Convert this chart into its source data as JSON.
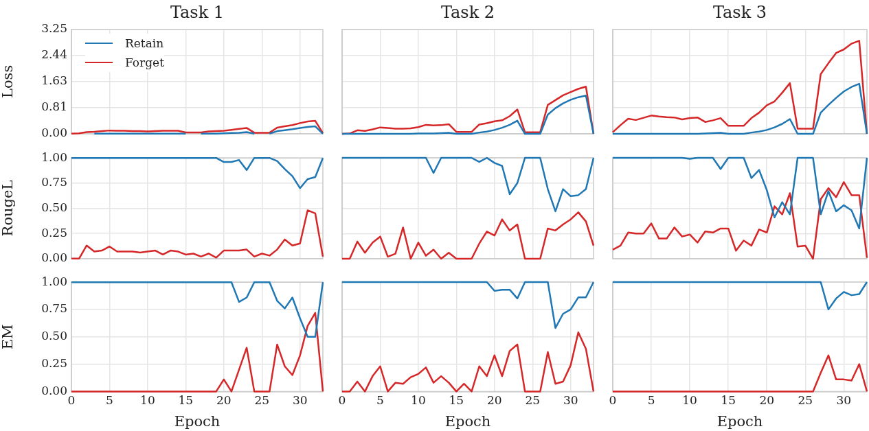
{
  "chart_data": [
    {
      "type": "line",
      "title": "Task 1",
      "ylabel": "Loss",
      "x": [
        0,
        1,
        2,
        3,
        4,
        5,
        6,
        7,
        8,
        9,
        10,
        11,
        12,
        13,
        14,
        15,
        16,
        17,
        18,
        19,
        20,
        21,
        22,
        23,
        24,
        25,
        26,
        27,
        28,
        29,
        30,
        31,
        32,
        33
      ],
      "xlim": [
        0,
        33
      ],
      "xticks": [
        0,
        5,
        10,
        15,
        20,
        25,
        30
      ],
      "ylim": [
        0,
        3.25
      ],
      "yticks": [
        {
          "value": 0,
          "label": "0.00"
        },
        {
          "value": 0.81,
          "label": "0.81"
        },
        {
          "value": 1.63,
          "label": "1.63"
        },
        {
          "value": 2.44,
          "label": "2.44"
        },
        {
          "value": 3.25,
          "label": "3.25"
        }
      ],
      "grid": true,
      "legend": "top left",
      "tick_labels": "y",
      "series": [
        {
          "name": "Retain",
          "color": "#1f77b4",
          "values": [
            null,
            null,
            null,
            0,
            0,
            0,
            0,
            0,
            0,
            0,
            0,
            0,
            0,
            0,
            0,
            0,
            null,
            0,
            0,
            0,
            0.01,
            0.02,
            0.03,
            0.05,
            0,
            null,
            0,
            0.08,
            0.11,
            0.14,
            0.18,
            0.21,
            0.23,
            0
          ]
        },
        {
          "name": "Forget",
          "color": "#d62728",
          "values": [
            0,
            0.01,
            0.05,
            0.06,
            0.08,
            0.1,
            0.09,
            0.09,
            0.08,
            0.08,
            0.07,
            0.08,
            0.09,
            0.09,
            0.09,
            0.04,
            0.04,
            0.04,
            0.07,
            0.08,
            0.09,
            0.12,
            0.15,
            0.18,
            0.03,
            0.03,
            0.03,
            0.19,
            0.23,
            0.27,
            0.33,
            0.38,
            0.4,
            0.02
          ]
        }
      ]
    },
    {
      "type": "line",
      "title": "Task 2",
      "x": [
        0,
        1,
        2,
        3,
        4,
        5,
        6,
        7,
        8,
        9,
        10,
        11,
        12,
        13,
        14,
        15,
        16,
        17,
        18,
        19,
        20,
        21,
        22,
        23,
        24,
        25,
        26,
        27,
        28,
        29,
        30,
        31,
        32,
        33
      ],
      "xlim": [
        0,
        33
      ],
      "xticks": [
        0,
        5,
        10,
        15,
        20,
        25,
        30
      ],
      "ylim": [
        0,
        3.25
      ],
      "yticks": [
        0,
        0.81,
        1.63,
        2.44,
        3.25
      ],
      "grid": true,
      "tick_labels": false,
      "series": [
        {
          "color": "#1f77b4",
          "values": [
            0,
            0,
            0,
            0,
            0,
            0,
            0,
            0,
            0,
            0,
            0.01,
            0.01,
            0.01,
            0.02,
            0.03,
            0,
            0,
            0,
            0.04,
            0.07,
            0.12,
            0.19,
            0.28,
            0.41,
            0,
            0,
            0,
            0.6,
            0.8,
            0.95,
            1.06,
            1.14,
            1.19,
            0
          ]
        },
        {
          "color": "#d62728",
          "values": [
            0,
            0.01,
            0.11,
            0.09,
            0.14,
            0.2,
            0.18,
            0.16,
            0.16,
            0.17,
            0.21,
            0.28,
            0.26,
            0.27,
            0.3,
            0.06,
            0.06,
            0.06,
            0.29,
            0.33,
            0.39,
            0.42,
            0.55,
            0.76,
            0.05,
            0.05,
            0.05,
            0.9,
            1.05,
            1.2,
            1.3,
            1.4,
            1.47,
            0
          ]
        }
      ]
    },
    {
      "type": "line",
      "title": "Task 3",
      "x": [
        0,
        1,
        2,
        3,
        4,
        5,
        6,
        7,
        8,
        9,
        10,
        11,
        12,
        13,
        14,
        15,
        16,
        17,
        18,
        19,
        20,
        21,
        22,
        23,
        24,
        25,
        26,
        27,
        28,
        29,
        30,
        31,
        32,
        33
      ],
      "xlim": [
        0,
        33
      ],
      "xticks": [
        0,
        5,
        10,
        15,
        20,
        25,
        30
      ],
      "ylim": [
        0,
        3.25
      ],
      "yticks": [
        0,
        0.81,
        1.63,
        2.44,
        3.25
      ],
      "grid": true,
      "tick_labels": false,
      "series": [
        {
          "color": "#1f77b4",
          "values": [
            0,
            0,
            0,
            0,
            0,
            0,
            0,
            0,
            0,
            0,
            0,
            0,
            0.01,
            0.02,
            0.03,
            0,
            0,
            0,
            0.04,
            0.07,
            0.12,
            0.2,
            0.31,
            0.46,
            0,
            0,
            0,
            0.66,
            0.9,
            1.12,
            1.32,
            1.46,
            1.56,
            0
          ]
        },
        {
          "color": "#d62728",
          "values": [
            0.05,
            0.27,
            0.47,
            0.43,
            0.5,
            0.57,
            0.54,
            0.52,
            0.51,
            0.45,
            0.49,
            0.51,
            0.37,
            0.42,
            0.49,
            0.25,
            0.25,
            0.25,
            0.49,
            0.66,
            0.89,
            1.01,
            1.28,
            1.58,
            0.16,
            0.16,
            0.16,
            1.86,
            2.2,
            2.52,
            2.63,
            2.81,
            2.9,
            0
          ]
        }
      ]
    },
    {
      "type": "line",
      "ylabel": "RougeL",
      "x": [
        0,
        1,
        2,
        3,
        4,
        5,
        6,
        7,
        8,
        9,
        10,
        11,
        12,
        13,
        14,
        15,
        16,
        17,
        18,
        19,
        20,
        21,
        22,
        23,
        24,
        25,
        26,
        27,
        28,
        29,
        30,
        31,
        32,
        33
      ],
      "xlim": [
        0,
        33
      ],
      "xticks": [
        0,
        5,
        10,
        15,
        20,
        25,
        30
      ],
      "ylim": [
        0,
        1
      ],
      "yticks": [
        {
          "value": 0,
          "label": "0.00"
        },
        {
          "value": 0.25,
          "label": "0.25"
        },
        {
          "value": 0.5,
          "label": "0.50"
        },
        {
          "value": 0.75,
          "label": "0.75"
        },
        {
          "value": 1,
          "label": "1.00"
        }
      ],
      "grid": true,
      "tick_labels": "y",
      "series": [
        {
          "color": "#1f77b4",
          "values": [
            1,
            1,
            1,
            1,
            1,
            1,
            1,
            1,
            1,
            1,
            1,
            1,
            1,
            1,
            1,
            1,
            1,
            1,
            1,
            1,
            0.96,
            0.96,
            0.98,
            0.88,
            1,
            1,
            1,
            0.97,
            0.89,
            0.82,
            0.7,
            0.79,
            0.81,
            1
          ]
        },
        {
          "color": "#d62728",
          "values": [
            0,
            0,
            0.13,
            0.07,
            0.08,
            0.12,
            0.07,
            0.07,
            0.07,
            0.06,
            0.07,
            0.08,
            0.04,
            0.08,
            0.07,
            0.04,
            0.05,
            0.02,
            0.05,
            0.01,
            0.08,
            0.08,
            0.08,
            0.09,
            0.02,
            0.05,
            0.03,
            0.09,
            0.19,
            0.13,
            0.15,
            0.48,
            0.45,
            0.02
          ]
        }
      ]
    },
    {
      "type": "line",
      "x": [
        0,
        1,
        2,
        3,
        4,
        5,
        6,
        7,
        8,
        9,
        10,
        11,
        12,
        13,
        14,
        15,
        16,
        17,
        18,
        19,
        20,
        21,
        22,
        23,
        24,
        25,
        26,
        27,
        28,
        29,
        30,
        31,
        32,
        33
      ],
      "xlim": [
        0,
        33
      ],
      "xticks": [
        0,
        5,
        10,
        15,
        20,
        25,
        30
      ],
      "ylim": [
        0,
        1
      ],
      "yticks": [
        0,
        0.25,
        0.5,
        0.75,
        1
      ],
      "grid": true,
      "tick_labels": false,
      "series": [
        {
          "color": "#1f77b4",
          "values": [
            1,
            1,
            1,
            1,
            1,
            1,
            1,
            1,
            1,
            1,
            1,
            1,
            0.85,
            1,
            1,
            1,
            1,
            1,
            0.96,
            1,
            0.95,
            0.92,
            0.64,
            0.75,
            1,
            1,
            1,
            0.69,
            0.47,
            0.69,
            0.62,
            0.63,
            0.69,
            1
          ]
        },
        {
          "color": "#d62728",
          "values": [
            0,
            0,
            0.17,
            0.06,
            0.16,
            0.22,
            0.02,
            0.05,
            0.31,
            0,
            0.16,
            0.03,
            0.09,
            0,
            0.06,
            0,
            0,
            0,
            0.15,
            0.27,
            0.23,
            0.39,
            0.28,
            0.34,
            0,
            0,
            0,
            0.3,
            0.28,
            0.34,
            0.39,
            0.46,
            0.37,
            0.13
          ]
        }
      ]
    },
    {
      "type": "line",
      "x": [
        0,
        1,
        2,
        3,
        4,
        5,
        6,
        7,
        8,
        9,
        10,
        11,
        12,
        13,
        14,
        15,
        16,
        17,
        18,
        19,
        20,
        21,
        22,
        23,
        24,
        25,
        26,
        27,
        28,
        29,
        30,
        31,
        32,
        33
      ],
      "xlim": [
        0,
        33
      ],
      "xticks": [
        0,
        5,
        10,
        15,
        20,
        25,
        30
      ],
      "ylim": [
        0,
        1
      ],
      "yticks": [
        0,
        0.25,
        0.5,
        0.75,
        1
      ],
      "grid": true,
      "tick_labels": false,
      "series": [
        {
          "color": "#1f77b4",
          "values": [
            1,
            1,
            1,
            1,
            1,
            1,
            1,
            1,
            1,
            1,
            0.99,
            1,
            1,
            1,
            0.89,
            1,
            1,
            1,
            0.8,
            0.88,
            0.68,
            0.41,
            0.56,
            0.44,
            1,
            1,
            1,
            0.44,
            0.67,
            0.47,
            0.53,
            0.48,
            0.3,
            1
          ]
        },
        {
          "color": "#d62728",
          "values": [
            0.09,
            0.13,
            0.26,
            0.25,
            0.25,
            0.35,
            0.2,
            0.2,
            0.31,
            0.22,
            0.24,
            0.16,
            0.27,
            0.26,
            0.3,
            0.3,
            0.08,
            0.18,
            0.13,
            0.29,
            0.26,
            0.52,
            0.44,
            0.65,
            0.12,
            0.13,
            0,
            0.59,
            0.7,
            0.61,
            0.76,
            0.63,
            0.63,
            0.01
          ]
        }
      ]
    },
    {
      "type": "line",
      "xlabel": "Epoch",
      "ylabel": "EM",
      "x": [
        0,
        1,
        2,
        3,
        4,
        5,
        6,
        7,
        8,
        9,
        10,
        11,
        12,
        13,
        14,
        15,
        16,
        17,
        18,
        19,
        20,
        21,
        22,
        23,
        24,
        25,
        26,
        27,
        28,
        29,
        30,
        31,
        32,
        33
      ],
      "xlim": [
        0,
        33
      ],
      "xticks": [
        0,
        5,
        10,
        15,
        20,
        25,
        30
      ],
      "ylim": [
        0,
        1
      ],
      "yticks": [
        {
          "value": 0,
          "label": "0.00"
        },
        {
          "value": 0.25,
          "label": "0.25"
        },
        {
          "value": 0.5,
          "label": "0.50"
        },
        {
          "value": 0.75,
          "label": "0.75"
        },
        {
          "value": 1,
          "label": "1.00"
        }
      ],
      "grid": true,
      "series": [
        {
          "color": "#1f77b4",
          "values": [
            1,
            1,
            1,
            1,
            1,
            1,
            1,
            1,
            1,
            1,
            1,
            1,
            1,
            1,
            1,
            1,
            1,
            1,
            1,
            1,
            1,
            1,
            0.82,
            0.86,
            1,
            1,
            1,
            0.83,
            0.76,
            0.86,
            0.67,
            0.5,
            0.5,
            1
          ]
        },
        {
          "color": "#d62728",
          "values": [
            0,
            0,
            0,
            0,
            0,
            0,
            0,
            0,
            0,
            0,
            0,
            0,
            0,
            0,
            0,
            0,
            0,
            0,
            0,
            0,
            0.11,
            0,
            0.2,
            0.4,
            0,
            0,
            0,
            0.43,
            0.23,
            0.15,
            0.33,
            0.6,
            0.72,
            0
          ]
        }
      ]
    },
    {
      "type": "line",
      "xlabel": "Epoch",
      "x": [
        0,
        1,
        2,
        3,
        4,
        5,
        6,
        7,
        8,
        9,
        10,
        11,
        12,
        13,
        14,
        15,
        16,
        17,
        18,
        19,
        20,
        21,
        22,
        23,
        24,
        25,
        26,
        27,
        28,
        29,
        30,
        31,
        32,
        33
      ],
      "xlim": [
        0,
        33
      ],
      "xticks": [
        0,
        5,
        10,
        15,
        20,
        25,
        30
      ],
      "ylim": [
        0,
        1
      ],
      "yticks": [
        0,
        0.25,
        0.5,
        0.75,
        1
      ],
      "grid": true,
      "tick_labels": "x",
      "series": [
        {
          "color": "#1f77b4",
          "values": [
            1,
            1,
            1,
            1,
            1,
            1,
            1,
            1,
            1,
            1,
            1,
            1,
            1,
            1,
            1,
            1,
            1,
            1,
            1,
            1,
            0.92,
            0.93,
            0.93,
            0.85,
            1,
            1,
            1,
            1,
            0.58,
            0.71,
            0.75,
            0.86,
            0.86,
            1
          ]
        },
        {
          "color": "#d62728",
          "values": [
            0,
            0,
            0.09,
            0,
            0.14,
            0.23,
            0,
            0.08,
            0.07,
            0.13,
            0.16,
            0.22,
            0.08,
            0.14,
            0.08,
            0,
            0.07,
            0,
            0.23,
            0.14,
            0.33,
            0.14,
            0.37,
            0.43,
            0,
            0,
            0,
            0.36,
            0.07,
            0.09,
            0.24,
            0.54,
            0.39,
            0
          ]
        }
      ]
    },
    {
      "type": "line",
      "xlabel": "Epoch",
      "x": [
        0,
        1,
        2,
        3,
        4,
        5,
        6,
        7,
        8,
        9,
        10,
        11,
        12,
        13,
        14,
        15,
        16,
        17,
        18,
        19,
        20,
        21,
        22,
        23,
        24,
        25,
        26,
        27,
        28,
        29,
        30,
        31,
        32,
        33
      ],
      "xlim": [
        0,
        33
      ],
      "xticks": [
        0,
        5,
        10,
        15,
        20,
        25,
        30
      ],
      "ylim": [
        0,
        1
      ],
      "yticks": [
        0,
        0.25,
        0.5,
        0.75,
        1
      ],
      "grid": true,
      "tick_labels": "x",
      "series": [
        {
          "color": "#1f77b4",
          "values": [
            1,
            1,
            1,
            1,
            1,
            1,
            1,
            1,
            1,
            1,
            1,
            1,
            1,
            1,
            1,
            1,
            1,
            1,
            1,
            1,
            1,
            1,
            1,
            1,
            1,
            1,
            1,
            1,
            0.75,
            0.85,
            0.91,
            0.88,
            0.89,
            1
          ]
        },
        {
          "color": "#d62728",
          "values": [
            0,
            0,
            0,
            0,
            0,
            0,
            0,
            0,
            0,
            0,
            0,
            0,
            0,
            0,
            0,
            0,
            0,
            0,
            0,
            0,
            0,
            0,
            0,
            0,
            0,
            0,
            0,
            0.17,
            0.33,
            0.11,
            0.11,
            0.1,
            0.25,
            0
          ]
        }
      ]
    }
  ]
}
